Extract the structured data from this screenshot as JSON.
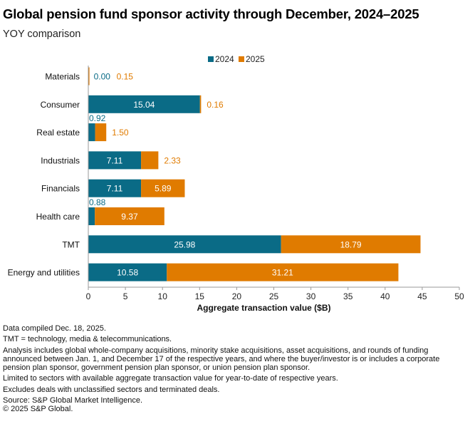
{
  "title": "Global pension fund sponsor activity through December, 2024–2025",
  "subtitle": "YOY comparison",
  "chart_data": {
    "type": "bar",
    "orientation": "horizontal",
    "stacked": true,
    "categories": [
      "Materials",
      "Consumer",
      "Real estate",
      "Industrials",
      "Financials",
      "Health care",
      "TMT",
      "Energy and utilities"
    ],
    "series": [
      {
        "name": "2024",
        "color": "#0a6b86",
        "values": [
          0.0,
          15.04,
          0.92,
          7.11,
          7.11,
          0.88,
          25.98,
          10.58
        ],
        "labels": [
          "0.00",
          "15.04",
          "0.92",
          "7.11",
          "7.11",
          "0.88",
          "25.98",
          "10.58"
        ]
      },
      {
        "name": "2025",
        "color": "#e07b00",
        "values": [
          0.15,
          0.16,
          1.5,
          2.33,
          5.89,
          9.37,
          18.79,
          31.21
        ],
        "labels": [
          "0.15",
          "0.16",
          "1.50",
          "2.33",
          "5.89",
          "9.37",
          "18.79",
          "31.21"
        ]
      }
    ],
    "xlabel": "Aggregate transaction value ($B)",
    "xlim": [
      0,
      50
    ],
    "xticks": [
      "0",
      "5",
      "10",
      "15",
      "20",
      "25",
      "30",
      "35",
      "40",
      "45",
      "50"
    ],
    "legend_position": "top-center"
  },
  "notes": [
    "Data compiled Dec. 18, 2025.",
    "TMT = technology, media & telecommunications.",
    "Analysis includes global whole-company acquisitions, minority stake acquisitions, asset acquisitions, and rounds of funding announced between Jan. 1, and December 17 of the respective years, and where the buyer/investor is or includes a corporate pension plan sponsor, government pension plan sponsor, or union pension plan sponsor.",
    "Limited to sectors with available aggregate transaction value for year-to-date of respective years.",
    "Excludes deals with unclassified sectors and terminated deals.",
    "Source: S&P Global Market Intelligence.",
    "© 2025 S&P Global."
  ]
}
